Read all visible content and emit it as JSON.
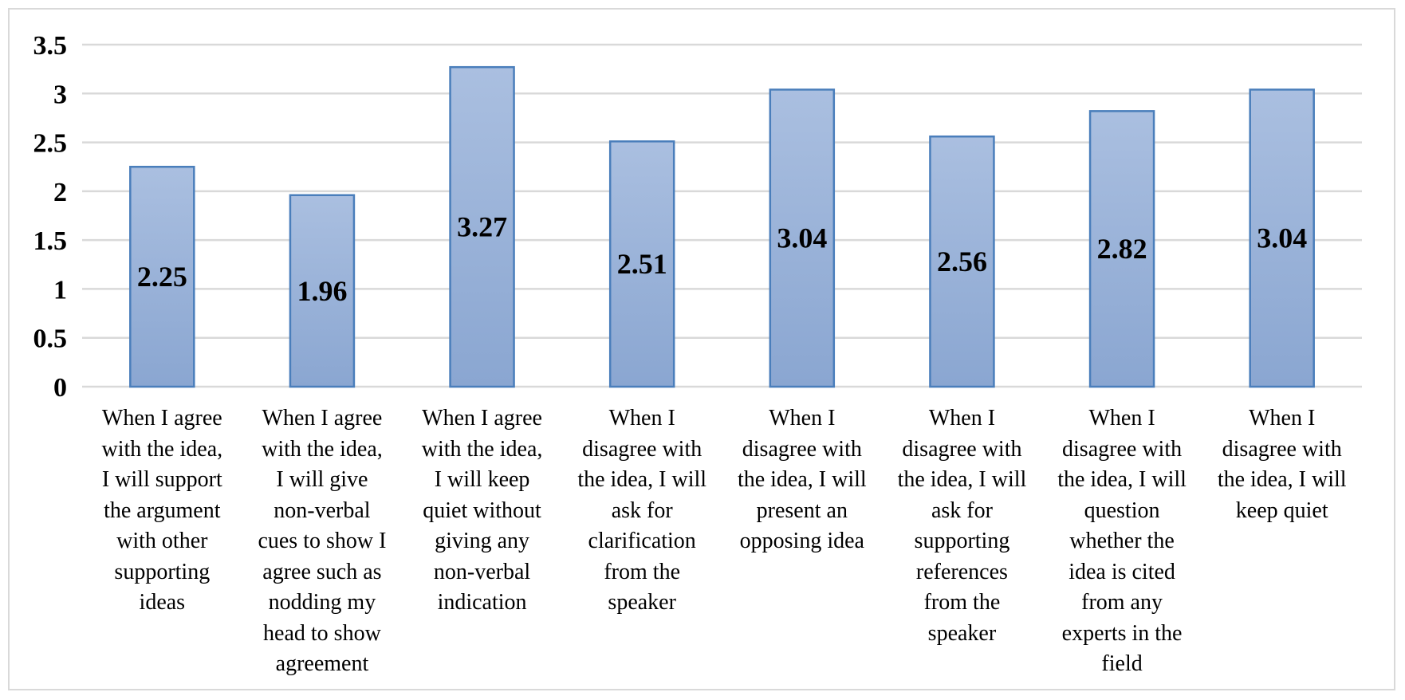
{
  "chart_data": {
    "type": "bar",
    "title": "",
    "xlabel": "",
    "ylabel": "",
    "ylim": [
      0,
      3.5
    ],
    "yticks": [
      "0",
      "0.5",
      "1",
      "1.5",
      "2",
      "2.5",
      "3",
      "3.5"
    ],
    "grid": true,
    "categories": [
      "When I agree with the idea, I will support the argument with other supporting ideas",
      "When I agree with the idea, I will give non-verbal cues to show I agree such as nodding my head to show agreement",
      "When I agree with the idea, I will keep quiet without giving any non-verbal indication",
      "When I disagree with the idea, I will ask for clarification from the speaker",
      "When I disagree with the idea, I will present an opposing idea",
      "When I disagree with the idea, I will ask for supporting references from the speaker",
      "When I disagree with the idea, I will question whether the idea is cited from any experts in the field",
      "When I disagree with the idea, I will keep quiet"
    ],
    "category_lines": [
      [
        "When I agree",
        "with the idea,",
        "I will support",
        "the argument",
        "with other",
        "supporting",
        "ideas"
      ],
      [
        "When I agree",
        "with the idea,",
        "I will give",
        "non-verbal",
        "cues to show I",
        "agree such as",
        "nodding my",
        "head to show",
        "agreement"
      ],
      [
        "When I agree",
        "with the idea,",
        "I will keep",
        "quiet without",
        "giving any",
        "non-verbal",
        "indication"
      ],
      [
        "When I",
        "disagree with",
        "the idea, I will",
        "ask for",
        "clarification",
        "from the",
        "speaker"
      ],
      [
        "When I",
        "disagree with",
        "the idea, I will",
        "present an",
        "opposing idea"
      ],
      [
        "When I",
        "disagree with",
        "the idea, I will",
        "ask for",
        "supporting",
        "references",
        "from the",
        "speaker"
      ],
      [
        "When I",
        "disagree with",
        "the idea, I will",
        "question",
        "whether the",
        "idea is cited",
        "from any",
        "experts in the",
        "field"
      ],
      [
        "When I",
        "disagree with",
        "the idea, I will",
        "keep quiet"
      ]
    ],
    "values": [
      2.25,
      1.96,
      3.27,
      2.51,
      3.04,
      2.56,
      2.82,
      3.04
    ],
    "data_labels": [
      "2.25",
      "1.96",
      "3.27",
      "2.51",
      "3.04",
      "2.56",
      "2.82",
      "3.04"
    ],
    "colors": {
      "bar_top": "#aabfe0",
      "bar_bottom": "#8aa6d1",
      "bar_border": "#4a7ebb",
      "grid": "#d9d9d9"
    }
  }
}
